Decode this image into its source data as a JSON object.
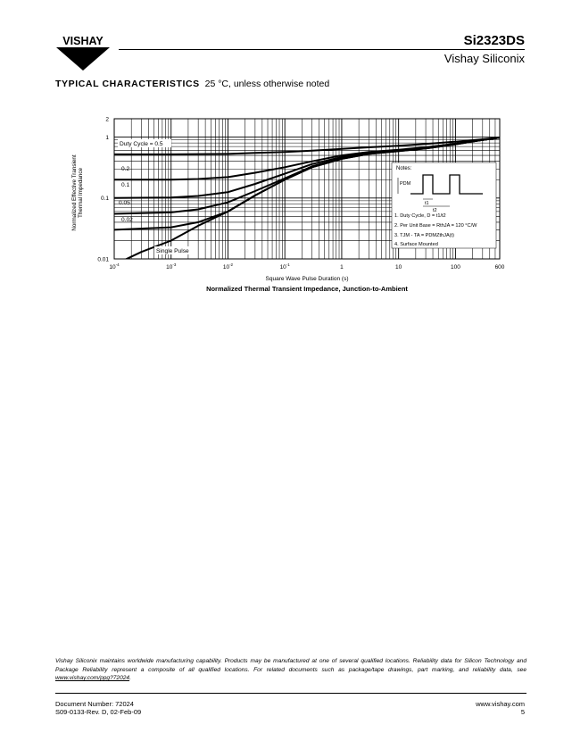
{
  "header": {
    "logo_text": "VISHAY",
    "part_number": "Si2323DS",
    "company": "Vishay Siliconix"
  },
  "section": {
    "title": "TYPICAL CHARACTERISTICS",
    "condition": "25 °C, unless otherwise noted"
  },
  "chart_data": {
    "type": "line",
    "title": "Normalized Thermal Transient Impedance, Junction-to-Ambient",
    "xlabel": "Square Wave Pulse Duration (s)",
    "ylabel": [
      "Normalized Effective Transient",
      "Thermal Impedance"
    ],
    "xscale": "log",
    "yscale": "log",
    "xlim": [
      0.0001,
      600
    ],
    "ylim": [
      0.01,
      2
    ],
    "x_ticks": [
      "10-4",
      "10-3",
      "10-2",
      "10-1",
      "1",
      "10",
      "100",
      "600"
    ],
    "y_ticks": [
      "2",
      "1",
      "0.1",
      "0.01"
    ],
    "grid": true,
    "series": [
      {
        "name": "Duty Cycle = 0.5",
        "x": [
          0.0001,
          0.001,
          0.01,
          0.03,
          0.1,
          0.3,
          1,
          3,
          10,
          30,
          100,
          300,
          600
        ],
        "y": [
          0.52,
          0.52,
          0.53,
          0.55,
          0.57,
          0.6,
          0.64,
          0.68,
          0.72,
          0.77,
          0.84,
          0.92,
          0.98
        ]
      },
      {
        "name": "0.2",
        "x": [
          0.0001,
          0.001,
          0.003,
          0.01,
          0.03,
          0.1,
          0.3,
          1,
          3,
          10,
          30,
          100,
          300,
          600
        ],
        "y": [
          0.2,
          0.2,
          0.205,
          0.22,
          0.26,
          0.32,
          0.4,
          0.5,
          0.57,
          0.62,
          0.68,
          0.78,
          0.9,
          0.98
        ]
      },
      {
        "name": "0.1",
        "x": [
          0.0001,
          0.001,
          0.003,
          0.01,
          0.03,
          0.1,
          0.3,
          1,
          3,
          10,
          30,
          100,
          300,
          600
        ],
        "y": [
          0.1,
          0.102,
          0.108,
          0.125,
          0.17,
          0.25,
          0.36,
          0.47,
          0.55,
          0.6,
          0.66,
          0.77,
          0.9,
          0.98
        ]
      },
      {
        "name": "0.05",
        "x": [
          0.0001,
          0.001,
          0.003,
          0.01,
          0.03,
          0.1,
          0.3,
          1,
          3,
          10,
          30,
          100,
          300,
          600
        ],
        "y": [
          0.055,
          0.058,
          0.065,
          0.085,
          0.13,
          0.21,
          0.33,
          0.45,
          0.54,
          0.6,
          0.66,
          0.77,
          0.9,
          0.98
        ]
      },
      {
        "name": "0.02",
        "x": [
          0.0001,
          0.001,
          0.003,
          0.01,
          0.03,
          0.1,
          0.3,
          1,
          3,
          10,
          30,
          100,
          300,
          600
        ],
        "y": [
          0.03,
          0.033,
          0.04,
          0.06,
          0.11,
          0.2,
          0.32,
          0.44,
          0.53,
          0.59,
          0.65,
          0.76,
          0.9,
          0.98
        ]
      },
      {
        "name": "Single Pulse",
        "x": [
          0.0001,
          0.0003,
          0.001,
          0.003,
          0.01,
          0.03,
          0.1,
          0.3,
          1,
          3,
          10,
          30,
          100,
          300,
          600
        ],
        "y": [
          0.008,
          0.013,
          0.02,
          0.035,
          0.06,
          0.11,
          0.2,
          0.32,
          0.44,
          0.53,
          0.59,
          0.65,
          0.76,
          0.9,
          0.98
        ]
      }
    ],
    "annotations": [
      "Duty Cycle = 0.5",
      "0.2",
      "0.1",
      "0.05",
      "0.02",
      "Single Pulse"
    ],
    "notes": {
      "heading": "Notes:",
      "pdm_label": "PDM",
      "t1_label": "t1",
      "t2_label": "t2",
      "items": [
        "1. Duty Cycle, D = t1/t2",
        "2. Per Unit Base = RthJA = 120 °C/W",
        "3. TJM - TA = PDMZthJA(t)",
        "4. Surface Mounted"
      ]
    }
  },
  "footer": {
    "disclaimer": "Vishay Siliconix maintains worldwide manufacturing capability. Products may be manufactured at one of several qualified locations. Reliability data for Silicon Technology and Package Reliability represent a composite of all qualified locations. For related documents such as package/tape drawings, part marking, and reliability data, see ",
    "link": "www.vishay.com/ppg?72024",
    "link_suffix": ".",
    "document_number": "Document Number: 72024",
    "revision": "S09-0133-Rev. D, 02-Feb-09",
    "website": "www.vishay.com",
    "page_number": "5"
  }
}
